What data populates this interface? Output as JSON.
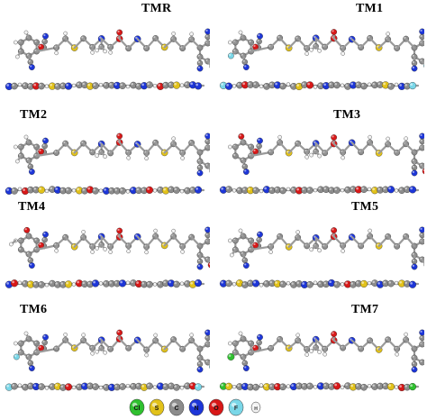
{
  "panels": [
    {
      "label": "TMR",
      "end": "cn",
      "label_x": 155,
      "label_y": 0
    },
    {
      "label": "TM1",
      "end": "F",
      "label_x": 155,
      "label_y": 0
    },
    {
      "label": "TM2",
      "end": "cn",
      "label_x": 20,
      "label_y": 2
    },
    {
      "label": "TM3",
      "end": "O",
      "label_x": 130,
      "label_y": 2
    },
    {
      "label": "TM4",
      "end": "OR",
      "label_x": 18,
      "label_y": 0
    },
    {
      "label": "TM5",
      "end": "cn",
      "label_x": 150,
      "label_y": 0
    },
    {
      "label": "TM6",
      "end": "F",
      "label_x": 20,
      "label_y": 0
    },
    {
      "label": "TM7",
      "end": "Cl",
      "label_x": 150,
      "label_y": 0
    }
  ],
  "legend": {
    "atoms": [
      "Cl",
      "S",
      "C",
      "N",
      "O",
      "F",
      "H"
    ]
  },
  "colors": {
    "C": "#8c8c8c",
    "H": "#f2f2f2",
    "N": "#1d36d8",
    "O": "#d81818",
    "S": "#e2c21a",
    "F": "#7ad7e8",
    "Cl": "#2fc02f",
    "bond": "#9a9a9a"
  }
}
